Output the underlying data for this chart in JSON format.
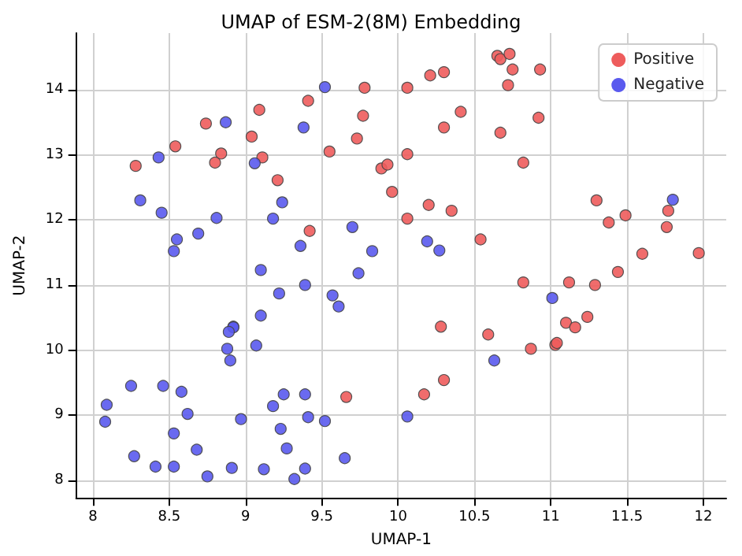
{
  "chart_data": {
    "type": "scatter",
    "title": "UMAP of ESM-2(8M) Embedding",
    "xlabel": "UMAP-1",
    "ylabel": "UMAP-2",
    "xlim": [
      7.89,
      12.15
    ],
    "ylim": [
      7.73,
      14.87
    ],
    "xticks": [
      8.0,
      8.5,
      9.0,
      9.5,
      10.0,
      10.5,
      11.0,
      11.5,
      12.0
    ],
    "yticks": [
      8,
      9,
      10,
      11,
      12,
      13,
      14
    ],
    "grid": true,
    "legend": "top right",
    "marker": "circle",
    "series": [
      {
        "name": "Positive",
        "color": "#ee5c5c",
        "x": [
          8.28,
          8.54,
          8.74,
          8.84,
          8.8,
          9.04,
          9.09,
          9.11,
          9.21,
          9.41,
          9.42,
          9.55,
          9.73,
          9.77,
          9.78,
          9.89,
          9.93,
          9.96,
          10.06,
          10.06,
          10.06,
          10.65,
          10.67,
          10.73,
          10.75,
          10.93,
          10.72,
          10.21,
          10.3,
          10.41,
          10.3,
          10.67,
          10.92,
          10.82,
          10.2,
          10.35,
          10.54,
          11.3,
          11.38,
          11.49,
          11.77,
          11.76,
          11.6,
          11.44,
          10.82,
          11.12,
          11.29,
          10.28,
          11.1,
          11.16,
          11.24,
          11.97,
          9.66,
          10.59,
          10.87,
          11.03,
          11.04,
          10.3,
          10.17
        ],
        "values": [
          12.83,
          13.13,
          13.48,
          13.02,
          12.88,
          13.28,
          13.69,
          12.96,
          12.61,
          13.83,
          11.83,
          13.05,
          13.25,
          13.6,
          14.03,
          12.79,
          12.85,
          12.43,
          14.03,
          13.01,
          12.02,
          14.52,
          14.47,
          14.55,
          14.31,
          14.31,
          14.07,
          14.22,
          14.27,
          13.66,
          13.42,
          13.34,
          13.57,
          12.88,
          12.23,
          12.14,
          11.7,
          12.3,
          11.96,
          12.07,
          12.14,
          11.89,
          11.48,
          11.2,
          11.04,
          11.04,
          11.0,
          10.36,
          10.42,
          10.35,
          10.51,
          11.49,
          9.28,
          10.24,
          10.02,
          10.08,
          10.11,
          9.54,
          9.32
        ]
      },
      {
        "name": "Negative",
        "color": "#5a5aee",
        "x": [
          9.52,
          8.87,
          9.38,
          8.43,
          9.06,
          8.31,
          8.45,
          9.24,
          8.81,
          9.18,
          8.55,
          8.69,
          8.53,
          9.36,
          9.7,
          9.83,
          9.1,
          9.74,
          9.39,
          9.22,
          9.57,
          9.61,
          9.1,
          8.92,
          11.8,
          10.19,
          10.27,
          11.01,
          8.92,
          8.89,
          8.88,
          9.07,
          8.9,
          8.25,
          8.46,
          8.58,
          8.09,
          8.62,
          8.08,
          8.97,
          9.18,
          9.25,
          9.39,
          9.41,
          9.52,
          9.23,
          8.53,
          8.68,
          9.27,
          9.65,
          8.27,
          8.41,
          8.53,
          8.91,
          9.12,
          9.39,
          8.75,
          9.32,
          10.06,
          10.63
        ],
        "values": [
          14.04,
          13.5,
          13.42,
          12.96,
          12.87,
          12.3,
          12.11,
          12.27,
          12.03,
          12.02,
          11.7,
          11.79,
          11.52,
          11.6,
          11.89,
          11.52,
          11.23,
          11.18,
          11.0,
          10.87,
          10.84,
          10.67,
          10.53,
          10.36,
          12.31,
          11.67,
          11.53,
          10.8,
          10.35,
          10.28,
          10.02,
          10.07,
          9.84,
          9.45,
          9.45,
          9.36,
          9.16,
          9.02,
          8.9,
          8.94,
          9.14,
          9.32,
          9.32,
          8.97,
          8.91,
          8.79,
          8.72,
          8.47,
          8.49,
          8.34,
          8.37,
          8.21,
          8.21,
          8.19,
          8.17,
          8.18,
          8.06,
          8.02,
          8.98,
          9.84
        ]
      }
    ]
  }
}
